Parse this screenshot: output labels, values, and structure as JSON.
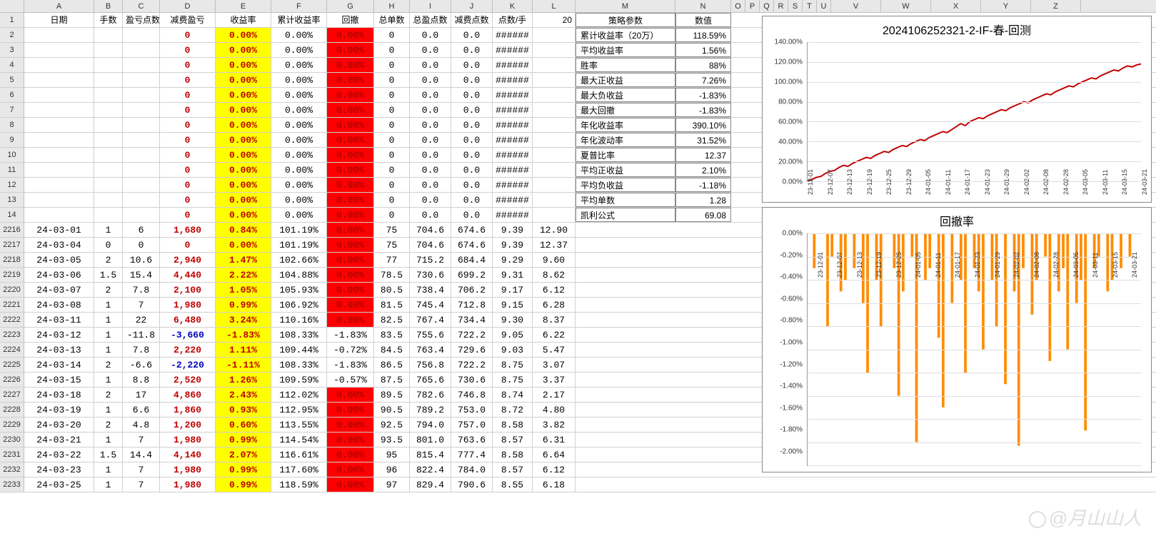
{
  "columns": {
    "letters": [
      "A",
      "B",
      "C",
      "D",
      "E",
      "F",
      "G",
      "H",
      "I",
      "J",
      "K",
      "L",
      "M",
      "N",
      "O",
      "P",
      "Q",
      "R",
      "S",
      "T",
      "U",
      "V",
      "W",
      "X",
      "Y",
      "Z"
    ],
    "headers": [
      "日期",
      "手数",
      "盈亏点数",
      "减费盈亏",
      "收益率",
      "累计收益率",
      "回撤",
      "总单数",
      "总盈点数",
      "减费点数",
      "点数/手",
      "20"
    ],
    "metrics_header_M": "策略参数",
    "metrics_header_N": "数值"
  },
  "colors": {
    "yellow": "#ffff00",
    "red": "#ff0000",
    "red_text": "#c00000",
    "blue_text": "#0000c0",
    "grid": "#d0d0d0",
    "header_bg": "#e8e8e8",
    "chart_line": "#c00000",
    "drawdown_line": "#ffa500"
  },
  "top_rows": [
    {
      "n": 2,
      "D": "0",
      "E": "0.00%",
      "F": "0.00%",
      "G": "0.00%",
      "H": "0",
      "I": "0.0",
      "J": "0.0",
      "K": "######"
    },
    {
      "n": 3,
      "D": "0",
      "E": "0.00%",
      "F": "0.00%",
      "G": "0.00%",
      "H": "0",
      "I": "0.0",
      "J": "0.0",
      "K": "######"
    },
    {
      "n": 4,
      "D": "0",
      "E": "0.00%",
      "F": "0.00%",
      "G": "0.00%",
      "H": "0",
      "I": "0.0",
      "J": "0.0",
      "K": "######"
    },
    {
      "n": 5,
      "D": "0",
      "E": "0.00%",
      "F": "0.00%",
      "G": "0.00%",
      "H": "0",
      "I": "0.0",
      "J": "0.0",
      "K": "######"
    },
    {
      "n": 6,
      "D": "0",
      "E": "0.00%",
      "F": "0.00%",
      "G": "0.00%",
      "H": "0",
      "I": "0.0",
      "J": "0.0",
      "K": "######"
    },
    {
      "n": 7,
      "D": "0",
      "E": "0.00%",
      "F": "0.00%",
      "G": "0.00%",
      "H": "0",
      "I": "0.0",
      "J": "0.0",
      "K": "######"
    },
    {
      "n": 8,
      "D": "0",
      "E": "0.00%",
      "F": "0.00%",
      "G": "0.00%",
      "H": "0",
      "I": "0.0",
      "J": "0.0",
      "K": "######"
    },
    {
      "n": 9,
      "D": "0",
      "E": "0.00%",
      "F": "0.00%",
      "G": "0.00%",
      "H": "0",
      "I": "0.0",
      "J": "0.0",
      "K": "######"
    },
    {
      "n": 10,
      "D": "0",
      "E": "0.00%",
      "F": "0.00%",
      "G": "0.00%",
      "H": "0",
      "I": "0.0",
      "J": "0.0",
      "K": "######"
    },
    {
      "n": 11,
      "D": "0",
      "E": "0.00%",
      "F": "0.00%",
      "G": "0.00%",
      "H": "0",
      "I": "0.0",
      "J": "0.0",
      "K": "######"
    },
    {
      "n": 12,
      "D": "0",
      "E": "0.00%",
      "F": "0.00%",
      "G": "0.00%",
      "H": "0",
      "I": "0.0",
      "J": "0.0",
      "K": "######"
    },
    {
      "n": 13,
      "D": "0",
      "E": "0.00%",
      "F": "0.00%",
      "G": "0.00%",
      "H": "0",
      "I": "0.0",
      "J": "0.0",
      "K": "######"
    },
    {
      "n": 14,
      "D": "0",
      "E": "0.00%",
      "F": "0.00%",
      "G": "0.00%",
      "H": "0",
      "I": "0.0",
      "J": "0.0",
      "K": "######"
    }
  ],
  "metrics": [
    {
      "label": "累计收益率（20万）",
      "value": "118.59%"
    },
    {
      "label": "平均收益率",
      "value": "1.56%"
    },
    {
      "label": "胜率",
      "value": "88%"
    },
    {
      "label": "最大正收益",
      "value": "7.26%"
    },
    {
      "label": "最大负收益",
      "value": "-1.83%"
    },
    {
      "label": "最大回撤",
      "value": "-1.83%"
    },
    {
      "label": "年化收益率",
      "value": "390.10%"
    },
    {
      "label": "年化波动率",
      "value": "31.52%"
    },
    {
      "label": "夏普比率",
      "value": "12.37"
    },
    {
      "label": "平均正收益",
      "value": "2.10%"
    },
    {
      "label": "平均负收益",
      "value": "-1.18%"
    },
    {
      "label": "平均单数",
      "value": "1.28"
    },
    {
      "label": "凯利公式",
      "value": "69.08"
    }
  ],
  "data_rows": [
    {
      "n": 2216,
      "A": "24-03-01",
      "B": "1",
      "C": "6",
      "D": "1,680",
      "E": "0.84%",
      "F": "101.19%",
      "G": "0.00%",
      "Gred": true,
      "H": "75",
      "I": "704.6",
      "J": "674.6",
      "K": "9.39",
      "L": "12.90",
      "neg": false
    },
    {
      "n": 2217,
      "A": "24-03-04",
      "B": "0",
      "C": "0",
      "D": "0",
      "E": "0.00%",
      "F": "101.19%",
      "G": "0.00%",
      "Gred": true,
      "H": "75",
      "I": "704.6",
      "J": "674.6",
      "K": "9.39",
      "L": "12.37",
      "neg": false
    },
    {
      "n": 2218,
      "A": "24-03-05",
      "B": "2",
      "C": "10.6",
      "D": "2,940",
      "E": "1.47%",
      "F": "102.66%",
      "G": "0.00%",
      "Gred": true,
      "H": "77",
      "I": "715.2",
      "J": "684.4",
      "K": "9.29",
      "L": "9.60",
      "neg": false
    },
    {
      "n": 2219,
      "A": "24-03-06",
      "B": "1.5",
      "C": "15.4",
      "D": "4,440",
      "E": "2.22%",
      "F": "104.88%",
      "G": "0.00%",
      "Gred": true,
      "H": "78.5",
      "I": "730.6",
      "J": "699.2",
      "K": "9.31",
      "L": "8.62",
      "neg": false
    },
    {
      "n": 2220,
      "A": "24-03-07",
      "B": "2",
      "C": "7.8",
      "D": "2,100",
      "E": "1.05%",
      "F": "105.93%",
      "G": "0.00%",
      "Gred": true,
      "H": "80.5",
      "I": "738.4",
      "J": "706.2",
      "K": "9.17",
      "L": "6.12",
      "neg": false
    },
    {
      "n": 2221,
      "A": "24-03-08",
      "B": "1",
      "C": "7",
      "D": "1,980",
      "E": "0.99%",
      "F": "106.92%",
      "G": "0.00%",
      "Gred": true,
      "H": "81.5",
      "I": "745.4",
      "J": "712.8",
      "K": "9.15",
      "L": "6.28",
      "neg": false
    },
    {
      "n": 2222,
      "A": "24-03-11",
      "B": "1",
      "C": "22",
      "D": "6,480",
      "E": "3.24%",
      "F": "110.16%",
      "G": "0.00%",
      "Gred": true,
      "H": "82.5",
      "I": "767.4",
      "J": "734.4",
      "K": "9.30",
      "L": "8.37",
      "neg": false
    },
    {
      "n": 2223,
      "A": "24-03-12",
      "B": "1",
      "C": "-11.8",
      "D": "-3,660",
      "E": "-1.83%",
      "F": "108.33%",
      "G": "-1.83%",
      "Gred": false,
      "H": "83.5",
      "I": "755.6",
      "J": "722.2",
      "K": "9.05",
      "L": "6.22",
      "neg": true
    },
    {
      "n": 2224,
      "A": "24-03-13",
      "B": "1",
      "C": "7.8",
      "D": "2,220",
      "E": "1.11%",
      "F": "109.44%",
      "G": "-0.72%",
      "Gred": false,
      "H": "84.5",
      "I": "763.4",
      "J": "729.6",
      "K": "9.03",
      "L": "5.47",
      "neg": false
    },
    {
      "n": 2225,
      "A": "24-03-14",
      "B": "2",
      "C": "-6.6",
      "D": "-2,220",
      "E": "-1.11%",
      "F": "108.33%",
      "G": "-1.83%",
      "Gred": false,
      "H": "86.5",
      "I": "756.8",
      "J": "722.2",
      "K": "8.75",
      "L": "3.07",
      "neg": true
    },
    {
      "n": 2226,
      "A": "24-03-15",
      "B": "1",
      "C": "8.8",
      "D": "2,520",
      "E": "1.26%",
      "F": "109.59%",
      "G": "-0.57%",
      "Gred": false,
      "H": "87.5",
      "I": "765.6",
      "J": "730.6",
      "K": "8.75",
      "L": "3.37",
      "neg": false
    },
    {
      "n": 2227,
      "A": "24-03-18",
      "B": "2",
      "C": "17",
      "D": "4,860",
      "E": "2.43%",
      "F": "112.02%",
      "G": "0.00%",
      "Gred": true,
      "H": "89.5",
      "I": "782.6",
      "J": "746.8",
      "K": "8.74",
      "L": "2.17",
      "neg": false
    },
    {
      "n": 2228,
      "A": "24-03-19",
      "B": "1",
      "C": "6.6",
      "D": "1,860",
      "E": "0.93%",
      "F": "112.95%",
      "G": "0.00%",
      "Gred": true,
      "H": "90.5",
      "I": "789.2",
      "J": "753.0",
      "K": "8.72",
      "L": "4.80",
      "neg": false
    },
    {
      "n": 2229,
      "A": "24-03-20",
      "B": "2",
      "C": "4.8",
      "D": "1,200",
      "E": "0.60%",
      "F": "113.55%",
      "G": "0.00%",
      "Gred": true,
      "H": "92.5",
      "I": "794.0",
      "J": "757.0",
      "K": "8.58",
      "L": "3.82",
      "neg": false
    },
    {
      "n": 2230,
      "A": "24-03-21",
      "B": "1",
      "C": "7",
      "D": "1,980",
      "E": "0.99%",
      "F": "114.54%",
      "G": "0.00%",
      "Gred": true,
      "H": "93.5",
      "I": "801.0",
      "J": "763.6",
      "K": "8.57",
      "L": "6.31",
      "neg": false
    },
    {
      "n": 2231,
      "A": "24-03-22",
      "B": "1.5",
      "C": "14.4",
      "D": "4,140",
      "E": "2.07%",
      "F": "116.61%",
      "G": "0.00%",
      "Gred": true,
      "H": "95",
      "I": "815.4",
      "J": "777.4",
      "K": "8.58",
      "L": "6.64",
      "neg": false
    },
    {
      "n": 2232,
      "A": "24-03-23",
      "B": "1",
      "C": "7",
      "D": "1,980",
      "E": "0.99%",
      "F": "117.60%",
      "G": "0.00%",
      "Gred": true,
      "H": "96",
      "I": "822.4",
      "J": "784.0",
      "K": "8.57",
      "L": "6.12",
      "neg": false
    },
    {
      "n": 2233,
      "A": "24-03-25",
      "B": "1",
      "C": "7",
      "D": "1,980",
      "E": "0.99%",
      "F": "118.59%",
      "G": "0.00%",
      "Gred": true,
      "H": "97",
      "I": "829.4",
      "J": "790.6",
      "K": "8.55",
      "L": "6.18",
      "neg": false
    }
  ],
  "chart1": {
    "title": "2024106252321-2-IF-春-回测",
    "type": "line",
    "ylim": [
      0,
      140
    ],
    "yticks": [
      "0.00%",
      "20.00%",
      "40.00%",
      "60.00%",
      "80.00%",
      "100.00%",
      "120.00%",
      "140.00%"
    ],
    "xticks": [
      "23-12-01",
      "23-12-07",
      "23-12-13",
      "23-12-19",
      "23-12-25",
      "23-12-29",
      "24-01-05",
      "24-01-11",
      "24-01-17",
      "24-01-23",
      "24-01-29",
      "24-02-02",
      "24-02-08",
      "24-02-28",
      "24-03-05",
      "24-03-11",
      "24-03-15",
      "24-03-21"
    ],
    "line_color": "#c00000",
    "background": "#ffffff",
    "grid_color": "#e0e0e0",
    "values": [
      0,
      2,
      4,
      5,
      8,
      10,
      11,
      14,
      16,
      15,
      18,
      20,
      22,
      24,
      23,
      26,
      28,
      30,
      29,
      32,
      34,
      36,
      35,
      38,
      40,
      42,
      41,
      44,
      46,
      48,
      50,
      49,
      52,
      55,
      58,
      56,
      60,
      62,
      64,
      63,
      66,
      68,
      70,
      72,
      71,
      74,
      76,
      78,
      80,
      79,
      82,
      84,
      86,
      88,
      87,
      90,
      92,
      94,
      96,
      95,
      98,
      100,
      102,
      104,
      103,
      106,
      108,
      110,
      112,
      111,
      114,
      116,
      115,
      117,
      118
    ]
  },
  "chart2": {
    "title": "回撤率",
    "type": "bar",
    "ylim": [
      -2.0,
      0
    ],
    "yticks": [
      "0.00%",
      "-0.20%",
      "-0.40%",
      "-0.60%",
      "-0.80%",
      "-1.00%",
      "-1.20%",
      "-1.40%",
      "-1.60%",
      "-1.80%",
      "-2.00%"
    ],
    "xticks": [
      "23-12-01",
      "23-12-07",
      "23-12-13",
      "23-12-19",
      "23-12-25",
      "24-01-05",
      "24-01-11",
      "24-01-17",
      "24-01-23",
      "24-01-29",
      "24-02-02",
      "24-02-08",
      "24-02-28",
      "24-03-05",
      "24-03-11",
      "24-03-15",
      "24-03-21"
    ],
    "bar_color": "#ff8c00",
    "values": [
      0,
      -0.3,
      0,
      0,
      -0.8,
      -0.2,
      0,
      -0.5,
      -0.4,
      0,
      -0.3,
      0,
      -0.6,
      -1.2,
      0,
      -0.4,
      -0.8,
      0,
      0,
      -0.3,
      -1.4,
      -0.5,
      0,
      -0.2,
      -1.8,
      0,
      -0.4,
      -0.3,
      0,
      -0.9,
      -1.5,
      0,
      -0.6,
      0,
      -0.4,
      -1.2,
      0,
      -0.3,
      -0.5,
      -1.0,
      0,
      -0.4,
      -0.8,
      0,
      -1.3,
      0,
      -0.5,
      -1.83,
      -0.3,
      0,
      -0.7,
      -0.4,
      0,
      -0.2,
      -1.1,
      0,
      -0.5,
      -0.3,
      -1.0,
      0,
      -0.6,
      -0.4,
      -1.7,
      0,
      -0.3,
      -0.2,
      0,
      -0.5,
      -0.4,
      0,
      -0.3,
      0,
      -0.2,
      0,
      0
    ]
  },
  "watermark": "@月山山人"
}
